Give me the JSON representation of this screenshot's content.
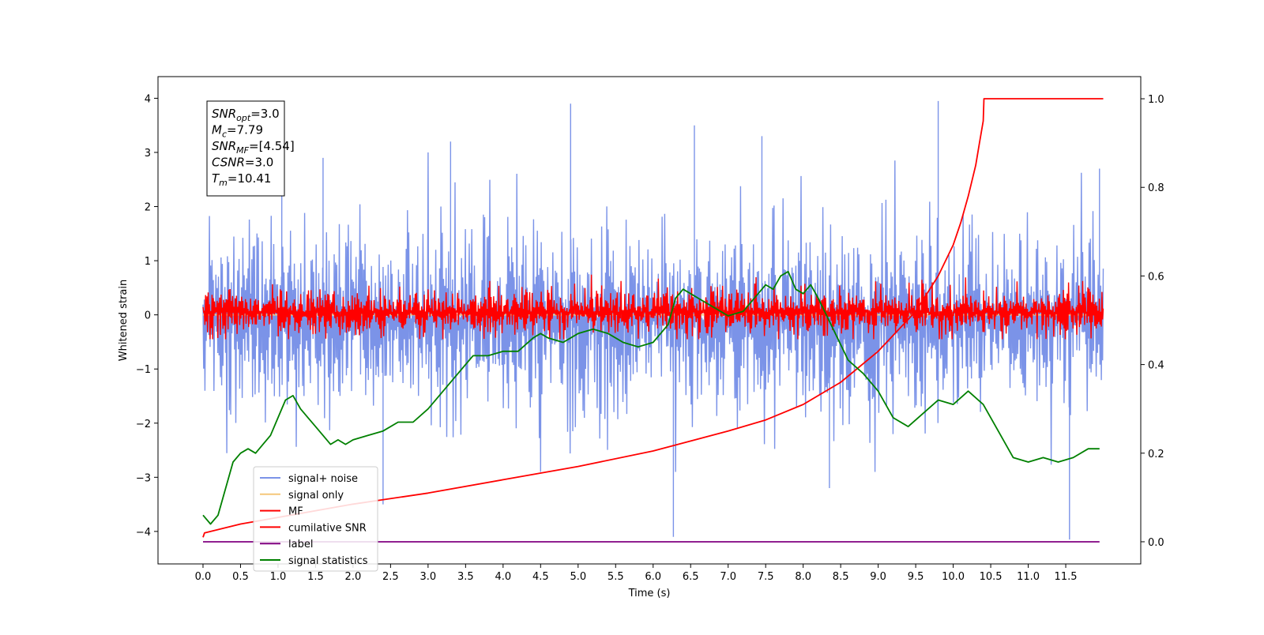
{
  "chart_data": {
    "type": "line",
    "xlabel": "Time (s)",
    "ylabel": "Whitened strain",
    "y2label": "",
    "xlim": [
      -0.6,
      12.5
    ],
    "ylim": [
      -4.6,
      4.4
    ],
    "y2lim": [
      -0.05,
      1.05
    ],
    "x_ticks": [
      0.0,
      0.5,
      1.0,
      1.5,
      2.0,
      2.5,
      3.0,
      3.5,
      4.0,
      4.5,
      5.0,
      5.5,
      6.0,
      6.5,
      7.0,
      7.5,
      8.0,
      8.5,
      9.0,
      9.5,
      10.0,
      10.5,
      11.0,
      11.5
    ],
    "x_tick_labels": [
      "0.0",
      "0.5",
      "1.0",
      "1.5",
      "2.0",
      "2.5",
      "3.0",
      "3.5",
      "4.0",
      "4.5",
      "5.0",
      "5.5",
      "6.0",
      "6.5",
      "7.0",
      "7.5",
      "8.0",
      "8.5",
      "9.0",
      "9.5",
      "10.0",
      "10.5",
      "11.0",
      "11.5"
    ],
    "y_ticks": [
      -4,
      -3,
      -2,
      -1,
      0,
      1,
      2,
      3,
      4
    ],
    "y_tick_labels": [
      "−4",
      "−3",
      "−2",
      "−1",
      "0",
      "1",
      "2",
      "3",
      "4"
    ],
    "y2_ticks": [
      0.0,
      0.2,
      0.4,
      0.6,
      0.8,
      1.0
    ],
    "y2_tick_labels": [
      "0.0",
      "0.2",
      "0.4",
      "0.6",
      "0.8",
      "1.0"
    ],
    "grid": false,
    "legend_position": "lower-left",
    "annotation": {
      "lines": [
        {
          "var": "SNR",
          "sub": "opt",
          "value": "=3.0"
        },
        {
          "var": "M",
          "sub": "c",
          "value": "=7.79"
        },
        {
          "var": "SNR",
          "sub": "MF",
          "value": "=[4.54]"
        },
        {
          "var": "CSNR",
          "sub": "",
          "value": "=3.0"
        },
        {
          "var": "T",
          "sub": "m",
          "value": "=10.41"
        }
      ]
    },
    "noise_spikes": [
      {
        "x": 1.05,
        "y": 2.6
      },
      {
        "x": 1.6,
        "y": 2.9
      },
      {
        "x": 2.4,
        "y": -3.5
      },
      {
        "x": 3.3,
        "y": 3.2
      },
      {
        "x": 4.9,
        "y": 3.9
      },
      {
        "x": 6.27,
        "y": -4.1
      },
      {
        "x": 6.55,
        "y": 3.5
      },
      {
        "x": 7.45,
        "y": 3.3
      },
      {
        "x": 8.35,
        "y": -3.2
      },
      {
        "x": 9.8,
        "y": 3.95
      },
      {
        "x": 11.55,
        "y": -4.15
      },
      {
        "x": 11.95,
        "y": 2.7
      }
    ],
    "series": [
      {
        "name": "signal+ noise",
        "color": "#7b93e8",
        "axis": "left",
        "band": {
          "x_start": 0.0,
          "x_end": 12.0,
          "typical_max": 1.6,
          "typical_min": -1.8,
          "extreme_max": 3.0,
          "extreme_min": -2.9
        }
      },
      {
        "name": "signal only",
        "color": "#f5c77a",
        "axis": "left",
        "x": [
          0.0,
          12.0
        ],
        "y": [
          0.0,
          0.0
        ]
      },
      {
        "name": "MF",
        "color": "#ff0000",
        "axis": "left",
        "band": {
          "x_start": 0.0,
          "x_end": 12.0,
          "typical_max": 0.45,
          "typical_min": -0.35,
          "extreme_max": 1.0,
          "extreme_min": -0.45
        }
      },
      {
        "name": "cumilative SNR",
        "color": "#ff0000",
        "axis": "right",
        "x": [
          0.0,
          0.02,
          0.5,
          1.0,
          2.0,
          3.0,
          4.0,
          5.0,
          6.0,
          7.0,
          7.5,
          8.0,
          8.5,
          9.0,
          9.5,
          9.8,
          10.0,
          10.1,
          10.2,
          10.3,
          10.35,
          10.4,
          10.41,
          11.0,
          12.0
        ],
        "y": [
          0.01,
          0.02,
          0.04,
          0.055,
          0.085,
          0.11,
          0.14,
          0.17,
          0.205,
          0.25,
          0.275,
          0.31,
          0.36,
          0.43,
          0.52,
          0.6,
          0.67,
          0.72,
          0.78,
          0.85,
          0.9,
          0.95,
          1.0,
          1.0,
          1.0
        ]
      },
      {
        "name": "label",
        "color": "#800080",
        "axis": "right",
        "x": [
          0.0,
          11.95
        ],
        "y": [
          0.0,
          0.0
        ]
      },
      {
        "name": "signal statistics",
        "color": "#008000",
        "axis": "right",
        "x": [
          0.0,
          0.1,
          0.2,
          0.3,
          0.4,
          0.5,
          0.6,
          0.7,
          0.8,
          0.9,
          1.0,
          1.1,
          1.2,
          1.3,
          1.4,
          1.5,
          1.6,
          1.7,
          1.8,
          1.9,
          2.0,
          2.2,
          2.4,
          2.6,
          2.8,
          3.0,
          3.2,
          3.4,
          3.6,
          3.8,
          4.0,
          4.2,
          4.4,
          4.5,
          4.6,
          4.8,
          5.0,
          5.2,
          5.4,
          5.6,
          5.8,
          6.0,
          6.2,
          6.3,
          6.4,
          6.5,
          6.6,
          6.8,
          7.0,
          7.2,
          7.4,
          7.5,
          7.6,
          7.7,
          7.8,
          7.9,
          8.0,
          8.1,
          8.2,
          8.4,
          8.6,
          8.8,
          9.0,
          9.2,
          9.4,
          9.6,
          9.8,
          10.0,
          10.2,
          10.4,
          10.6,
          10.8,
          11.0,
          11.2,
          11.4,
          11.6,
          11.8,
          11.95
        ],
        "y": [
          0.06,
          0.04,
          0.06,
          0.12,
          0.18,
          0.2,
          0.21,
          0.2,
          0.22,
          0.24,
          0.28,
          0.32,
          0.33,
          0.3,
          0.28,
          0.26,
          0.24,
          0.22,
          0.23,
          0.22,
          0.23,
          0.24,
          0.25,
          0.27,
          0.27,
          0.3,
          0.34,
          0.38,
          0.42,
          0.42,
          0.43,
          0.43,
          0.46,
          0.47,
          0.46,
          0.45,
          0.47,
          0.48,
          0.47,
          0.45,
          0.44,
          0.45,
          0.49,
          0.55,
          0.57,
          0.56,
          0.55,
          0.53,
          0.51,
          0.52,
          0.56,
          0.58,
          0.57,
          0.6,
          0.61,
          0.57,
          0.56,
          0.58,
          0.55,
          0.48,
          0.41,
          0.38,
          0.34,
          0.28,
          0.26,
          0.29,
          0.32,
          0.31,
          0.34,
          0.31,
          0.25,
          0.19,
          0.18,
          0.19,
          0.18,
          0.19,
          0.21,
          0.21
        ]
      }
    ]
  }
}
